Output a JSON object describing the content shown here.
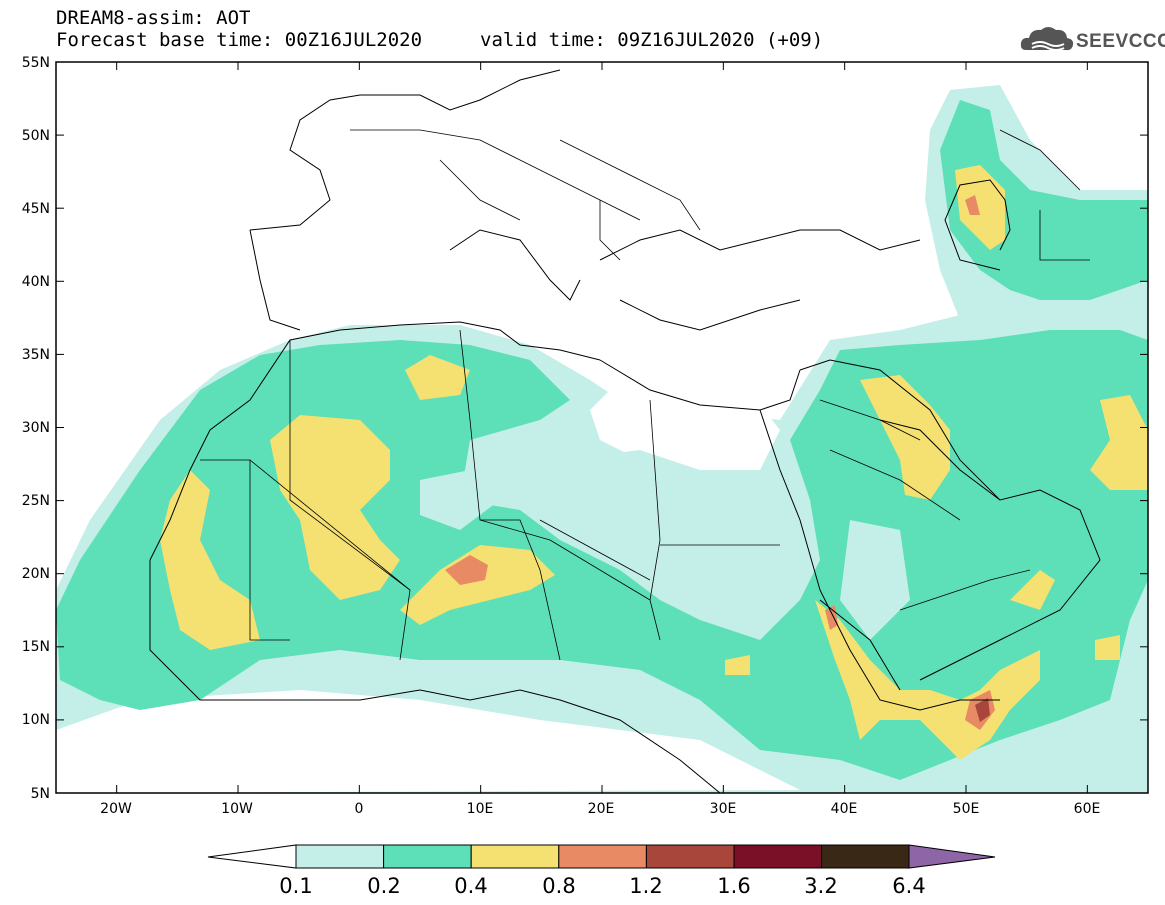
{
  "header": {
    "product_line": "DREAM8-assim: AOT",
    "base_time_line": "Forecast base time: 00Z16JUL2020",
    "valid_time_line": "valid time: 09Z16JUL2020 (+09)"
  },
  "logo": {
    "text": "SEEVCCC",
    "icon": "cloud-icon"
  },
  "map": {
    "lat_labels": [
      "55N",
      "50N",
      "45N",
      "40N",
      "35N",
      "30N",
      "25N",
      "20N",
      "15N",
      "10N",
      "5N"
    ],
    "lon_labels": [
      "20W",
      "10W",
      "0",
      "10E",
      "20E",
      "30E",
      "40E",
      "50E",
      "60E"
    ],
    "lon_range": [
      -25,
      65
    ],
    "lat_range": [
      5,
      55
    ]
  },
  "legend": {
    "labels": [
      "0.1",
      "0.2",
      "0.4",
      "0.8",
      "1.2",
      "1.6",
      "3.2",
      "6.4"
    ],
    "colors": [
      "#c4efe8",
      "#5ddfb8",
      "#f4e172",
      "#e88a64",
      "#a8463c",
      "#7a0f28",
      "#3a2816",
      "#8e66a8"
    ]
  }
}
